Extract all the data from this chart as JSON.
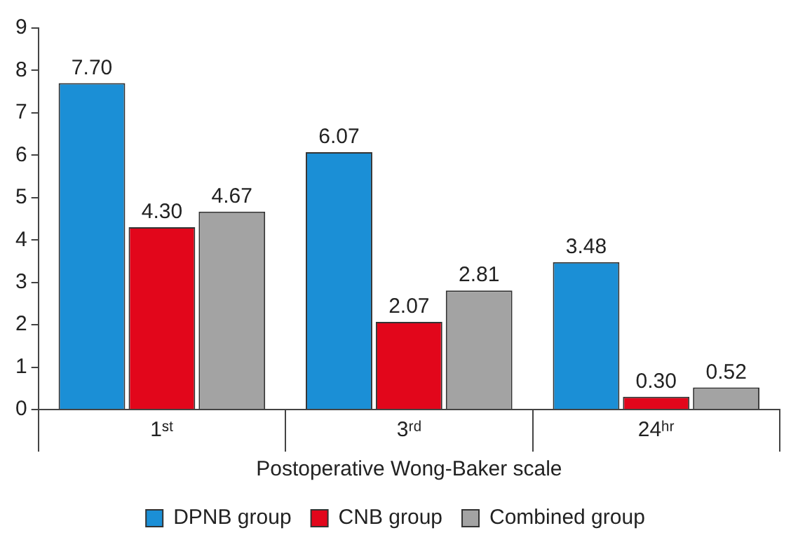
{
  "chart_data": {
    "type": "bar",
    "xlabel": "Postoperative Wong-Baker scale",
    "categories": [
      "1ˢᵗ",
      "3ʳᵈ",
      "24ʰʳ"
    ],
    "series": [
      {
        "name": "DPNB group",
        "color": "#1b8fd6",
        "values": [
          7.7,
          6.07,
          3.48
        ],
        "value_labels": [
          "7.70",
          "6.07",
          "3.48"
        ]
      },
      {
        "name": "CNB group",
        "color": "#e2061b",
        "values": [
          4.3,
          2.07,
          0.3
        ],
        "value_labels": [
          "4.30",
          "2.07",
          "0.30"
        ]
      },
      {
        "name": "Combined group",
        "color": "#a3a3a3",
        "values": [
          4.67,
          2.81,
          0.52
        ],
        "value_labels": [
          "4.67",
          "2.81",
          "0.52"
        ]
      }
    ],
    "ylim": [
      0,
      9
    ],
    "yticks": [
      0,
      1,
      2,
      3,
      4,
      5,
      6,
      7,
      8,
      9
    ],
    "grid": false,
    "legend": "bottom"
  }
}
